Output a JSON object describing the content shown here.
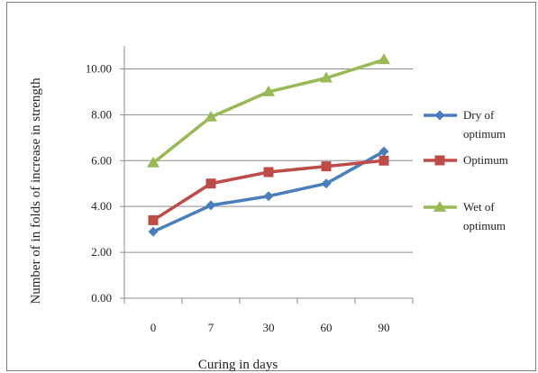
{
  "chart_data": {
    "type": "line",
    "title": "",
    "xlabel": "Curing in days",
    "ylabel": "Number of in folds of increase in strength",
    "categories": [
      "0",
      "7",
      "30",
      "60",
      "90"
    ],
    "ylim": [
      0,
      11
    ],
    "yticks": [
      "0.00",
      "2.00",
      "4.00",
      "6.00",
      "8.00",
      "10.00"
    ],
    "ytick_values": [
      0,
      2,
      4,
      6,
      8,
      10
    ],
    "grid": true,
    "legend_position": "right",
    "series": [
      {
        "name_lines": [
          "Dry of",
          "optimum"
        ],
        "values": [
          2.9,
          4.05,
          4.45,
          5.0,
          6.4
        ],
        "color": "#4a7ebb",
        "marker": "diamond"
      },
      {
        "name_lines": [
          "Optimum"
        ],
        "values": [
          3.4,
          5.0,
          5.5,
          5.75,
          6.0
        ],
        "color": "#be4b48",
        "marker": "square"
      },
      {
        "name_lines": [
          "Wet of",
          "optimum"
        ],
        "values": [
          5.9,
          7.9,
          9.0,
          9.6,
          10.4
        ],
        "color": "#98b954",
        "marker": "triangle"
      }
    ]
  }
}
